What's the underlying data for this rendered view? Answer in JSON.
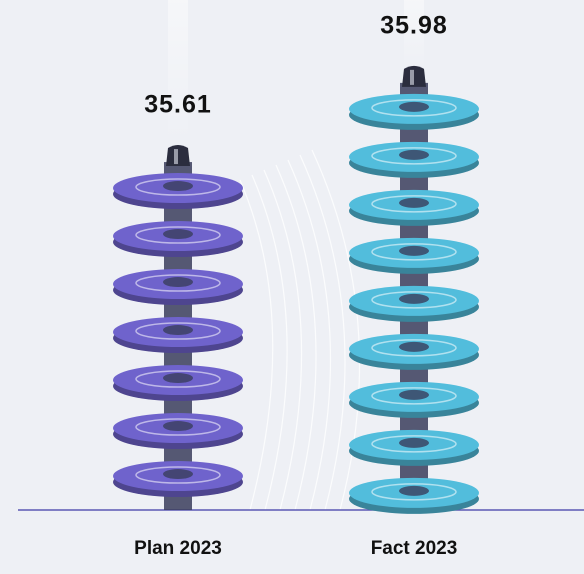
{
  "chart_data": {
    "type": "bar",
    "categories": [
      "Plan 2023",
      "Fact 2023"
    ],
    "values": [
      35.61,
      35.98
    ],
    "series_colors": [
      "#6f63cc",
      "#52bddc"
    ],
    "ylim": [
      33.9,
      36.2
    ]
  }
}
